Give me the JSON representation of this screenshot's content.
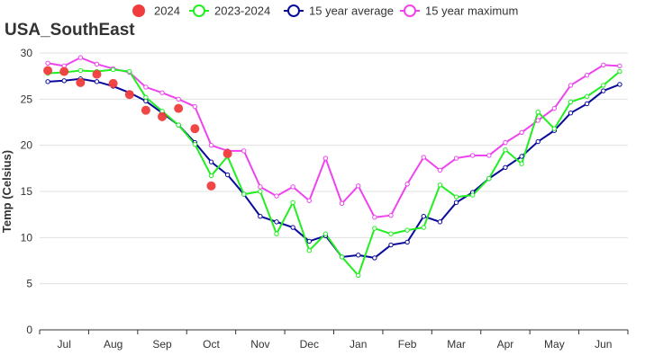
{
  "chart_data": {
    "type": "line",
    "title": "USA_SouthEast",
    "ylabel": "Temp (Celsius)",
    "xlabel": "",
    "ylim": [
      0,
      30
    ],
    "yticks": [
      0,
      5,
      10,
      15,
      20,
      25,
      30
    ],
    "month_labels": [
      "Jul",
      "Aug",
      "Sep",
      "Oct",
      "Nov",
      "Dec",
      "Jan",
      "Feb",
      "Mar",
      "Apr",
      "May",
      "Jun"
    ],
    "x_count": 36,
    "grid": "horizontal",
    "legend_position": "top",
    "series": [
      {
        "name": "2024",
        "marker": "filled-circle",
        "color": "#f03c3c",
        "values": [
          28.1,
          28.0,
          26.8,
          27.7,
          26.7,
          25.5,
          23.8,
          23.1,
          24.0,
          21.8,
          15.6,
          19.1
        ]
      },
      {
        "name": "2023-2024",
        "marker": "hollow-circle",
        "color": "#22ee22",
        "values": [
          27.8,
          27.9,
          28.1,
          28.0,
          28.2,
          28.0,
          25.2,
          23.7,
          22.2,
          20.1,
          16.7,
          18.8,
          14.7,
          15.0,
          10.4,
          13.8,
          8.6,
          10.4,
          7.9,
          5.9,
          11.0,
          10.4,
          10.8,
          11.1,
          15.7,
          14.4,
          14.6,
          16.4,
          19.5,
          18.0,
          23.6,
          21.8,
          24.7,
          25.3,
          26.5,
          28.0
        ]
      },
      {
        "name": "15 year average",
        "marker": "hollow-circle",
        "color": "#0a0a9a",
        "values": [
          26.9,
          27.0,
          27.2,
          26.9,
          26.4,
          25.7,
          24.8,
          23.5,
          22.2,
          20.3,
          18.2,
          16.8,
          14.7,
          12.3,
          11.7,
          11.1,
          9.6,
          10.2,
          7.9,
          8.1,
          7.8,
          9.2,
          9.5,
          12.3,
          11.7,
          13.8,
          14.9,
          16.4,
          17.6,
          18.8,
          20.4,
          21.6,
          23.5,
          24.5,
          25.9,
          26.6
        ]
      },
      {
        "name": "15 year maximum",
        "marker": "hollow-circle",
        "color": "#ee44ee",
        "values": [
          28.9,
          28.6,
          29.5,
          28.8,
          28.3,
          27.9,
          26.3,
          25.7,
          25.0,
          24.2,
          20.0,
          19.4,
          19.4,
          15.5,
          14.5,
          15.5,
          14.0,
          18.6,
          13.7,
          15.6,
          12.2,
          12.4,
          15.8,
          18.7,
          17.3,
          18.6,
          18.9,
          18.9,
          20.3,
          21.4,
          22.7,
          24.0,
          26.5,
          27.6,
          28.7,
          28.6
        ]
      }
    ]
  }
}
